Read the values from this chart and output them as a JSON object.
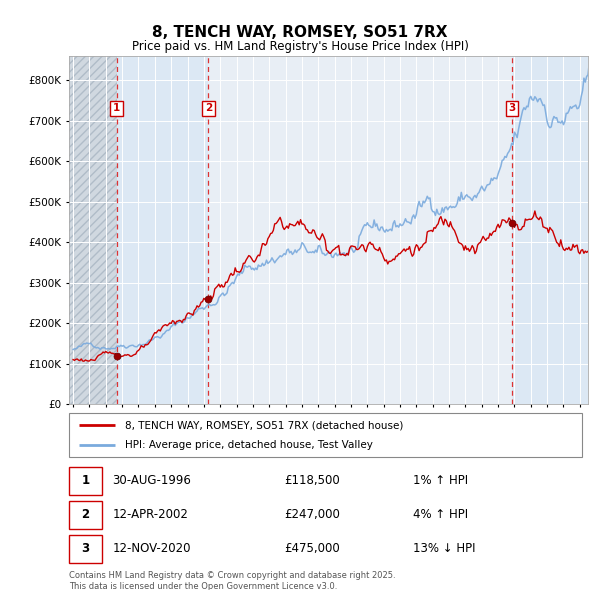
{
  "title": "8, TENCH WAY, ROMSEY, SO51 7RX",
  "subtitle": "Price paid vs. HM Land Registry's House Price Index (HPI)",
  "ylim": [
    0,
    860000
  ],
  "yticks": [
    0,
    100000,
    200000,
    300000,
    400000,
    500000,
    600000,
    700000,
    800000
  ],
  "xlim_start": 1993.75,
  "xlim_end": 2025.5,
  "background_color": "#ffffff",
  "plot_bg_color": "#e8eef5",
  "hatch_region_color": "#d0d8e0",
  "sale_color": "#cc0000",
  "hpi_color": "#7aaadd",
  "legend_sale_label": "8, TENCH WAY, ROMSEY, SO51 7RX (detached house)",
  "legend_hpi_label": "HPI: Average price, detached house, Test Valley",
  "transactions": [
    {
      "label": "1",
      "date": "30-AUG-1996",
      "price": 118500,
      "pct": "1%",
      "dir": "↑",
      "year": 1996.667
    },
    {
      "label": "2",
      "date": "12-APR-2002",
      "price": 247000,
      "pct": "4%",
      "dir": "↑",
      "year": 2002.283
    },
    {
      "label": "3",
      "date": "12-NOV-2020",
      "price": 475000,
      "pct": "13%",
      "dir": "↓",
      "year": 2020.867
    }
  ],
  "footer_line1": "Contains HM Land Registry data © Crown copyright and database right 2025.",
  "footer_line2": "This data is licensed under the Open Government Licence v3.0.",
  "vline_color": "#dd3333",
  "highlight_band_color": "#dce8f4"
}
